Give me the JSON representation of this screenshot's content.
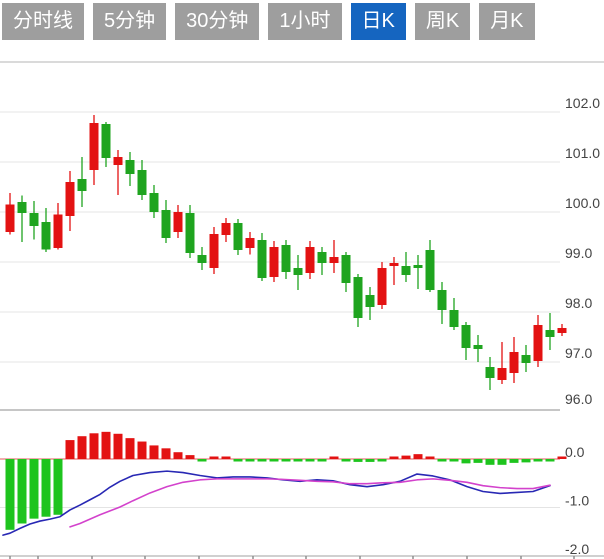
{
  "tabbar": {
    "tabs": [
      {
        "label": "分时线",
        "active": false
      },
      {
        "label": "5分钟",
        "active": false
      },
      {
        "label": "30分钟",
        "active": false
      },
      {
        "label": "1小时",
        "active": false
      },
      {
        "label": "日K",
        "active": true
      },
      {
        "label": "周K",
        "active": false
      },
      {
        "label": "月K",
        "active": false
      }
    ]
  },
  "colors": {
    "tab_bg": "#9e9e9e",
    "tab_active_bg": "#1565c0",
    "tab_text": "#ffffff",
    "up_red": "#e31212",
    "down_green": "#1fa41f",
    "hist_green": "#1ec41e",
    "dif_blue": "#2828b4",
    "dea_magenta": "#d342cc",
    "zero_line_red": "#e05959",
    "gridline": "#e4e4e4",
    "separator": "#b4b4b4",
    "axis_label": "#444444",
    "background": "#ffffff"
  },
  "chart_data": {
    "type": "candlestick",
    "title": "",
    "xlabel": "",
    "ylabel": "",
    "legend": "none",
    "grid": "horizontal",
    "y_axis_position": "right",
    "main_panel": {
      "ylim": [
        96.0,
        102.2
      ],
      "ticks": [
        {
          "value": 102,
          "label": "102.0"
        },
        {
          "value": 101,
          "label": "101.0"
        },
        {
          "value": 100,
          "label": "100.0"
        },
        {
          "value": 99,
          "label": "99.0"
        },
        {
          "value": 98,
          "label": "98.0"
        },
        {
          "value": 97,
          "label": "97.0"
        },
        {
          "value": 96,
          "label": "96.0"
        }
      ],
      "candles": [
        {
          "o": 99.6,
          "c": 100.15,
          "h": 100.38,
          "l": 99.55
        },
        {
          "o": 100.2,
          "c": 99.98,
          "h": 100.33,
          "l": 99.4
        },
        {
          "o": 99.98,
          "c": 99.72,
          "h": 100.22,
          "l": 99.45
        },
        {
          "o": 99.8,
          "c": 99.25,
          "h": 100.08,
          "l": 99.2
        },
        {
          "o": 99.28,
          "c": 99.95,
          "h": 100.18,
          "l": 99.25
        },
        {
          "o": 99.92,
          "c": 100.6,
          "h": 100.82,
          "l": 99.62
        },
        {
          "o": 100.66,
          "c": 100.42,
          "h": 101.1,
          "l": 100.1
        },
        {
          "o": 100.84,
          "c": 101.78,
          "h": 101.94,
          "l": 100.54
        },
        {
          "o": 101.76,
          "c": 101.08,
          "h": 101.8,
          "l": 100.9
        },
        {
          "o": 100.94,
          "c": 101.1,
          "h": 101.24,
          "l": 100.34
        },
        {
          "o": 101.04,
          "c": 100.76,
          "h": 101.2,
          "l": 100.52
        },
        {
          "o": 100.84,
          "c": 100.34,
          "h": 101.04,
          "l": 100.24
        },
        {
          "o": 100.38,
          "c": 100.0,
          "h": 100.54,
          "l": 99.88
        },
        {
          "o": 100.04,
          "c": 99.48,
          "h": 100.24,
          "l": 99.38
        },
        {
          "o": 99.6,
          "c": 100.0,
          "h": 100.14,
          "l": 99.48
        },
        {
          "o": 99.98,
          "c": 99.18,
          "h": 100.14,
          "l": 99.08
        },
        {
          "o": 99.14,
          "c": 98.98,
          "h": 99.3,
          "l": 98.84
        },
        {
          "o": 98.88,
          "c": 99.56,
          "h": 99.7,
          "l": 98.76
        },
        {
          "o": 99.54,
          "c": 99.78,
          "h": 99.88,
          "l": 99.4
        },
        {
          "o": 99.78,
          "c": 99.24,
          "h": 99.86,
          "l": 99.14
        },
        {
          "o": 99.28,
          "c": 99.48,
          "h": 99.6,
          "l": 99.15
        },
        {
          "o": 99.44,
          "c": 98.68,
          "h": 99.58,
          "l": 98.62
        },
        {
          "o": 98.7,
          "c": 99.3,
          "h": 99.42,
          "l": 98.6
        },
        {
          "o": 99.34,
          "c": 98.8,
          "h": 99.44,
          "l": 98.66
        },
        {
          "o": 98.88,
          "c": 98.74,
          "h": 99.14,
          "l": 98.44
        },
        {
          "o": 98.78,
          "c": 99.3,
          "h": 99.42,
          "l": 98.66
        },
        {
          "o": 99.2,
          "c": 98.98,
          "h": 99.3,
          "l": 98.74
        },
        {
          "o": 98.98,
          "c": 99.1,
          "h": 99.44,
          "l": 98.78
        },
        {
          "o": 99.14,
          "c": 98.58,
          "h": 99.2,
          "l": 98.4
        },
        {
          "o": 98.7,
          "c": 97.88,
          "h": 98.76,
          "l": 97.7
        },
        {
          "o": 98.34,
          "c": 98.1,
          "h": 98.5,
          "l": 97.84
        },
        {
          "o": 98.14,
          "c": 98.88,
          "h": 99.0,
          "l": 98.06
        },
        {
          "o": 98.92,
          "c": 98.98,
          "h": 99.1,
          "l": 98.54
        },
        {
          "o": 98.92,
          "c": 98.74,
          "h": 99.2,
          "l": 98.6
        },
        {
          "o": 98.94,
          "c": 98.88,
          "h": 99.14,
          "l": 98.46
        },
        {
          "o": 99.24,
          "c": 98.44,
          "h": 99.44,
          "l": 98.4
        },
        {
          "o": 98.44,
          "c": 98.04,
          "h": 98.6,
          "l": 97.76
        },
        {
          "o": 98.04,
          "c": 97.7,
          "h": 98.28,
          "l": 97.64
        },
        {
          "o": 97.74,
          "c": 97.28,
          "h": 97.8,
          "l": 97.04
        },
        {
          "o": 97.34,
          "c": 97.26,
          "h": 97.54,
          "l": 97.0
        },
        {
          "o": 96.9,
          "c": 96.68,
          "h": 97.1,
          "l": 96.44
        },
        {
          "o": 96.64,
          "c": 96.88,
          "h": 97.4,
          "l": 96.56
        },
        {
          "o": 96.78,
          "c": 97.2,
          "h": 97.5,
          "l": 96.58
        },
        {
          "o": 97.14,
          "c": 96.98,
          "h": 97.34,
          "l": 96.8
        },
        {
          "o": 97.02,
          "c": 97.74,
          "h": 97.94,
          "l": 96.9
        },
        {
          "o": 97.64,
          "c": 97.5,
          "h": 97.98,
          "l": 97.24
        },
        {
          "o": 97.58,
          "c": 97.68,
          "h": 97.76,
          "l": 97.52
        }
      ]
    },
    "macd_panel": {
      "ylim": [
        -2.1,
        0.6
      ],
      "ticks": [
        {
          "value": 0,
          "label": "0.0"
        },
        {
          "value": -1,
          "label": "-1.0"
        },
        {
          "value": -2,
          "label": "-2.0"
        }
      ],
      "histogram": [
        -1.46,
        -1.33,
        -1.23,
        -1.19,
        -1.15,
        0.39,
        0.47,
        0.53,
        0.56,
        0.52,
        0.43,
        0.36,
        0.28,
        0.22,
        0.14,
        0.08,
        -0.03,
        0.03,
        0.02,
        -0.02,
        -0.03,
        -0.04,
        -0.04,
        -0.05,
        -0.05,
        -0.05,
        -0.04,
        0.03,
        -0.05,
        -0.06,
        -0.06,
        -0.05,
        0.04,
        0.07,
        0.1,
        0.05,
        -0.03,
        -0.05,
        -0.09,
        -0.08,
        -0.12,
        -0.12,
        -0.08,
        -0.07,
        -0.05,
        -0.04,
        0.04
      ],
      "dif_line": [
        [
          3,
          -1.57
        ],
        [
          10,
          -1.53
        ],
        [
          20,
          -1.43
        ],
        [
          30,
          -1.34
        ],
        [
          40,
          -1.28
        ],
        [
          50,
          -1.24
        ],
        [
          60,
          -1.19
        ],
        [
          70,
          -1.05
        ],
        [
          80,
          -0.95
        ],
        [
          90,
          -0.84
        ],
        [
          100,
          -0.73
        ],
        [
          110,
          -0.58
        ],
        [
          120,
          -0.46
        ],
        [
          133,
          -0.34
        ],
        [
          150,
          -0.28
        ],
        [
          167,
          -0.25
        ],
        [
          183,
          -0.28
        ],
        [
          200,
          -0.34
        ],
        [
          217,
          -0.39
        ],
        [
          233,
          -0.37
        ],
        [
          250,
          -0.37
        ],
        [
          267,
          -0.39
        ],
        [
          283,
          -0.43
        ],
        [
          300,
          -0.46
        ],
        [
          317,
          -0.43
        ],
        [
          333,
          -0.45
        ],
        [
          350,
          -0.53
        ],
        [
          367,
          -0.57
        ],
        [
          383,
          -0.53
        ],
        [
          400,
          -0.46
        ],
        [
          417,
          -0.31
        ],
        [
          433,
          -0.35
        ],
        [
          450,
          -0.43
        ],
        [
          467,
          -0.57
        ],
        [
          483,
          -0.67
        ],
        [
          500,
          -0.71
        ],
        [
          517,
          -0.69
        ],
        [
          533,
          -0.67
        ],
        [
          550,
          -0.55
        ]
      ],
      "dea_line": [
        [
          70,
          -1.4
        ],
        [
          80,
          -1.33
        ],
        [
          90,
          -1.24
        ],
        [
          100,
          -1.15
        ],
        [
          110,
          -1.07
        ],
        [
          120,
          -0.99
        ],
        [
          133,
          -0.86
        ],
        [
          150,
          -0.7
        ],
        [
          167,
          -0.57
        ],
        [
          183,
          -0.48
        ],
        [
          200,
          -0.43
        ],
        [
          217,
          -0.41
        ],
        [
          233,
          -0.41
        ],
        [
          250,
          -0.41
        ],
        [
          267,
          -0.41
        ],
        [
          283,
          -0.42
        ],
        [
          300,
          -0.44
        ],
        [
          317,
          -0.46
        ],
        [
          333,
          -0.47
        ],
        [
          350,
          -0.51
        ],
        [
          367,
          -0.51
        ],
        [
          383,
          -0.49
        ],
        [
          400,
          -0.48
        ],
        [
          417,
          -0.43
        ],
        [
          433,
          -0.41
        ],
        [
          450,
          -0.44
        ],
        [
          467,
          -0.48
        ],
        [
          483,
          -0.55
        ],
        [
          500,
          -0.59
        ],
        [
          517,
          -0.61
        ],
        [
          533,
          -0.61
        ],
        [
          550,
          -0.54
        ]
      ]
    },
    "x_axis": {
      "tick_positions": [
        10,
        38,
        92,
        145,
        199,
        253,
        306,
        360,
        413,
        467,
        521,
        574
      ]
    }
  }
}
